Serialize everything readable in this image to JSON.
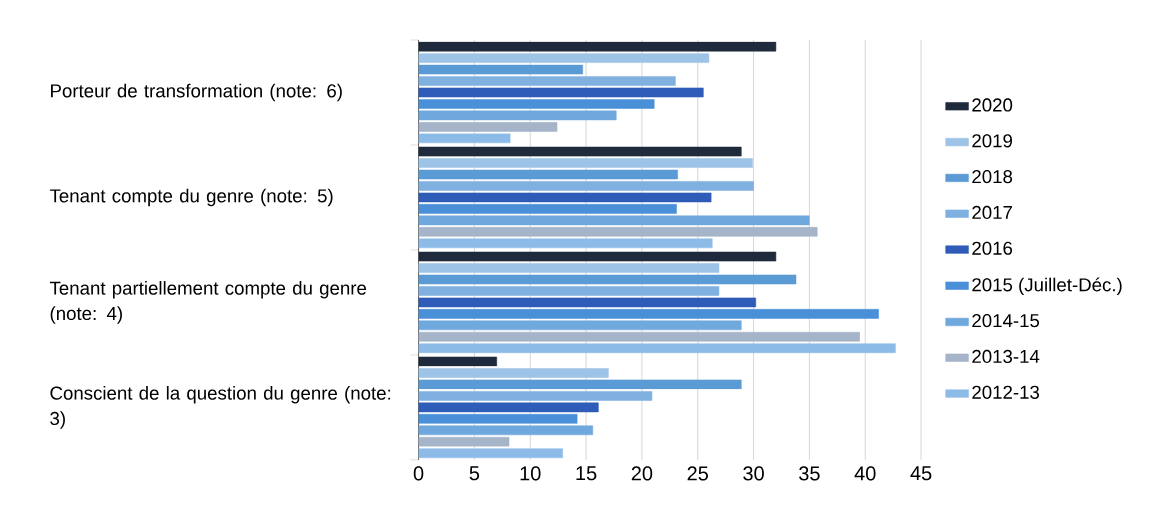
{
  "chart_data": {
    "type": "bar",
    "orientation": "horizontal",
    "categories": [
      "Porteur de transformation (note: 6)",
      "Tenant compte du genre (note: 5)",
      "Tenant partiellement compte du genre (note: 4)",
      "Conscient de la question du genre (note: 3)"
    ],
    "series": [
      {
        "name": "2020",
        "color": "#1f2a3c",
        "values": [
          32,
          28.9,
          32,
          7
        ]
      },
      {
        "name": "2019",
        "color": "#9dc3e6",
        "values": [
          26,
          29.9,
          26.9,
          17
        ]
      },
      {
        "name": "2018",
        "color": "#5b9bd5",
        "values": [
          14.7,
          23.2,
          33.8,
          28.9
        ]
      },
      {
        "name": "2017",
        "color": "#7fb0e0",
        "values": [
          23,
          30,
          26.9,
          20.9
        ]
      },
      {
        "name": "2016",
        "color": "#2e5cb8",
        "values": [
          25.5,
          26.2,
          30.2,
          16.1
        ]
      },
      {
        "name": "2015 (Juillet-Déc.)",
        "color": "#4a90d9",
        "values": [
          21.1,
          23.1,
          41.2,
          14.2
        ]
      },
      {
        "name": "2014-15",
        "color": "#6fa8dc",
        "values": [
          17.7,
          35,
          28.9,
          15.6
        ]
      },
      {
        "name": "2013-14",
        "color": "#a5b4c8",
        "values": [
          12.4,
          35.7,
          39.5,
          8.1
        ]
      },
      {
        "name": "2012-13",
        "color": "#8dbbe8",
        "values": [
          8.2,
          26.3,
          42.7,
          12.9
        ]
      }
    ],
    "xlim": [
      0,
      45
    ],
    "xticks": [
      0,
      5,
      10,
      15,
      20,
      25,
      30,
      35,
      40,
      45
    ],
    "grid": "x",
    "legend": "right"
  }
}
